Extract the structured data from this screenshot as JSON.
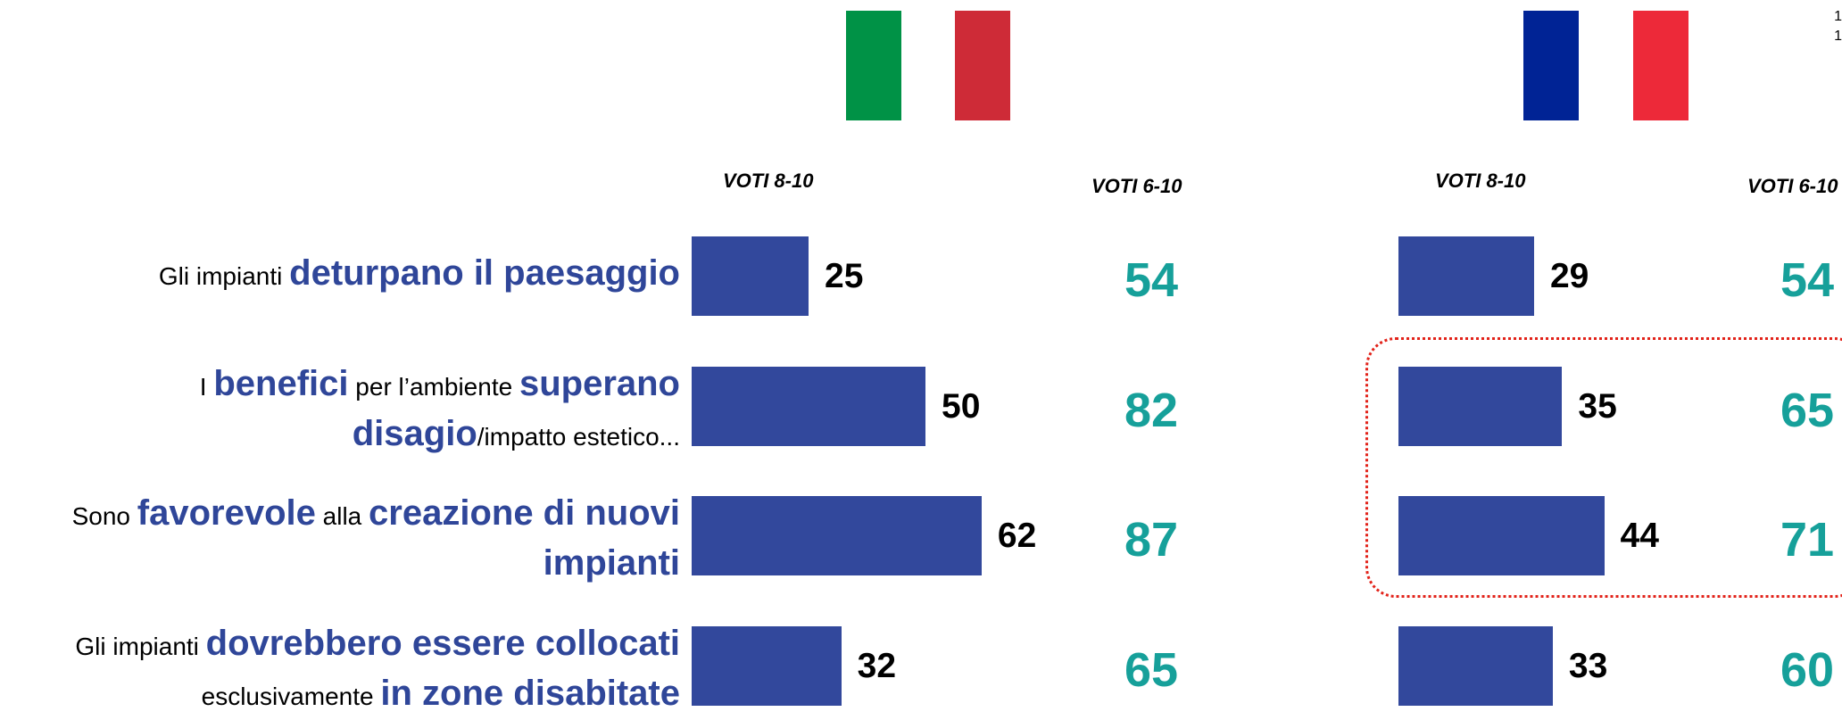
{
  "colors": {
    "bar": "#32489c",
    "highlight_text": "#2f4699",
    "teal_value": "#16a09a",
    "italy_green": "#009246",
    "italy_red": "#ce2b37",
    "france_blue": "#002395",
    "france_red": "#ed2939",
    "callout_border": "#e2231a"
  },
  "page": {
    "corner_mark": "1\n1"
  },
  "headers": {
    "italy": {
      "voti_8_10": "VOTI 8-10",
      "voti_6_10": "VOTI 6-10"
    },
    "france": {
      "voti_8_10": "VOTI 8-10",
      "voti_6_10": "VOTI 6-10"
    }
  },
  "rows": [
    {
      "label_line1": [
        {
          "text": "Gli impianti ",
          "hl": false
        },
        {
          "text": "deturpano il paesaggio",
          "hl": true
        }
      ],
      "label_line2": []
    },
    {
      "label_line1": [
        {
          "text": "I ",
          "hl": false
        },
        {
          "text": "benefici",
          "hl": true
        },
        {
          "text": " per l’ambiente ",
          "hl": false
        },
        {
          "text": "superano",
          "hl": true
        }
      ],
      "label_line2": [
        {
          "text": "disagio",
          "hl": true
        },
        {
          "text": "/impatto estetico...",
          "hl": false
        }
      ]
    },
    {
      "label_line1": [
        {
          "text": "Sono ",
          "hl": false
        },
        {
          "text": "favorevole",
          "hl": true
        },
        {
          "text": " alla ",
          "hl": false
        },
        {
          "text": "creazione di nuovi",
          "hl": true
        }
      ],
      "label_line2": [
        {
          "text": "impianti",
          "hl": true
        }
      ]
    },
    {
      "label_line1": [
        {
          "text": "Gli impianti ",
          "hl": false
        },
        {
          "text": "dovrebbero essere collocati",
          "hl": true
        }
      ],
      "label_line2": [
        {
          "text": "esclusivamente ",
          "hl": false
        },
        {
          "text": "in zone disabitate",
          "hl": true
        }
      ]
    }
  ],
  "chart_data": [
    {
      "type": "bar",
      "orientation": "horizontal",
      "group": "italy",
      "categories": [
        "Gli impianti deturpano il paesaggio",
        "I benefici per l’ambiente superano disagio/impatto estetico...",
        "Sono favorevole alla creazione di nuovi impianti",
        "Gli impianti dovrebbero essere collocati esclusivamente in zone disabitate"
      ],
      "series": [
        {
          "name": "VOTI 8-10",
          "values": [
            25,
            50,
            62,
            32
          ]
        },
        {
          "name": "VOTI 6-10",
          "values": [
            54,
            82,
            87,
            65
          ]
        }
      ],
      "xlim": [
        0,
        100
      ],
      "grid": false
    },
    {
      "type": "bar",
      "orientation": "horizontal",
      "group": "france",
      "categories": [
        "Gli impianti deturpano il paesaggio",
        "I benefici per l’ambiente superano disagio/impatto estetico...",
        "Sono favorevole alla creazione di nuovi impianti",
        "Gli impianti dovrebbero essere collocati esclusivamente in zone disabitate"
      ],
      "series": [
        {
          "name": "VOTI 8-10",
          "values": [
            29,
            35,
            44,
            33
          ]
        },
        {
          "name": "VOTI 6-10",
          "values": [
            54,
            65,
            71,
            60
          ]
        }
      ],
      "xlim": [
        0,
        100
      ],
      "grid": false
    }
  ]
}
